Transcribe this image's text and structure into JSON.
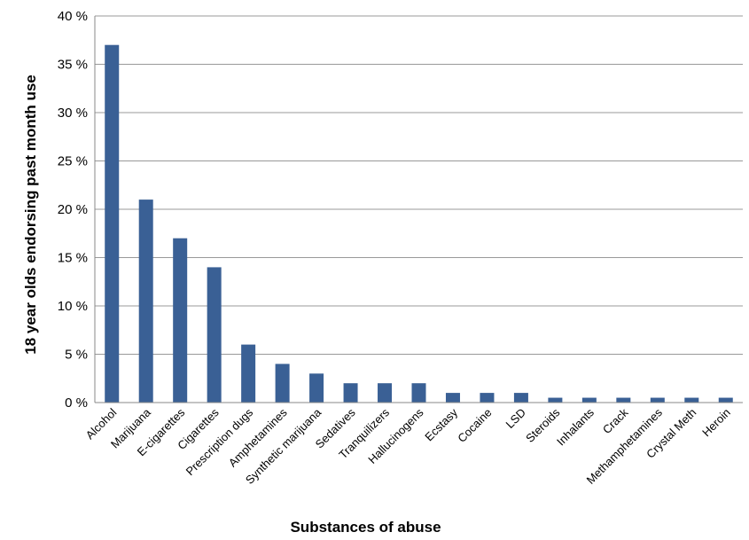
{
  "chart_data": {
    "type": "bar",
    "title": "",
    "xlabel": "Substances of abuse",
    "ylabel": "18 year olds endorsing past month use",
    "ylim": [
      0,
      40
    ],
    "yticks": [
      0,
      5,
      10,
      15,
      20,
      25,
      30,
      35,
      40
    ],
    "ytick_labels": [
      "0 %",
      "5 %",
      "10 %",
      "15 %",
      "20 %",
      "25 %",
      "30 %",
      "35 %",
      "40 %"
    ],
    "grid": true,
    "bar_color": "#3A6095",
    "categories": [
      "Alcohol",
      "Marijuana",
      "E-cigarettes",
      "Cigarettes",
      "Prescription dugs",
      "Amphetamines",
      "Synthetic marijuana",
      "Sedatives",
      "Tranquilizers",
      "Hallucinogens",
      "Ecstasy",
      "Cocaine",
      "LSD",
      "Steroids",
      "Inhalants",
      "Crack",
      "Methamphetamines",
      "Crystal Meth",
      "Heroin"
    ],
    "values": [
      37,
      21,
      17,
      14,
      6,
      4,
      3,
      2,
      2,
      2,
      1,
      1,
      1,
      0.5,
      0.5,
      0.5,
      0.5,
      0.5,
      0.5
    ]
  }
}
